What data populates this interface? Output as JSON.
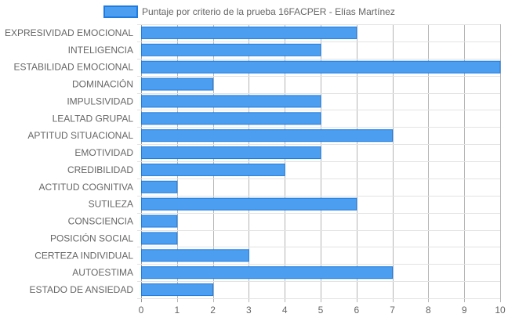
{
  "chart_data": {
    "type": "bar",
    "orientation": "horizontal",
    "categories": [
      "EXPRESIVIDAD EMOCIONAL",
      "INTELIGENCIA",
      "ESTABILIDAD EMOCIONAL",
      "DOMINACIÓN",
      "IMPULSIVIDAD",
      "LEALTAD GRUPAL",
      "APTITUD SITUACIONAL",
      "EMOTIVIDAD",
      "CREDIBILIDAD",
      "ACTITUD COGNITIVA",
      "SUTILEZA",
      "CONSCIENCIA",
      "POSICIÓN SOCIAL",
      "CERTEZA INDIVIDUAL",
      "AUTOESTIMA",
      "ESTADO DE ANSIEDAD"
    ],
    "series": [
      {
        "name": "Puntaje por criterio de la prueba 16FACPER - Elías Martínez",
        "values": [
          6,
          5,
          10,
          2,
          5,
          5,
          7,
          5,
          4,
          1,
          6,
          1,
          1,
          3,
          7,
          2
        ],
        "color": "#4c9ff0",
        "border_color": "#1e7be0"
      }
    ],
    "xlim": [
      0,
      10
    ],
    "xticks": [
      "0",
      "1",
      "2",
      "3",
      "4",
      "5",
      "6",
      "7",
      "8",
      "9",
      "10"
    ],
    "grid": true,
    "legend_position": "top"
  }
}
